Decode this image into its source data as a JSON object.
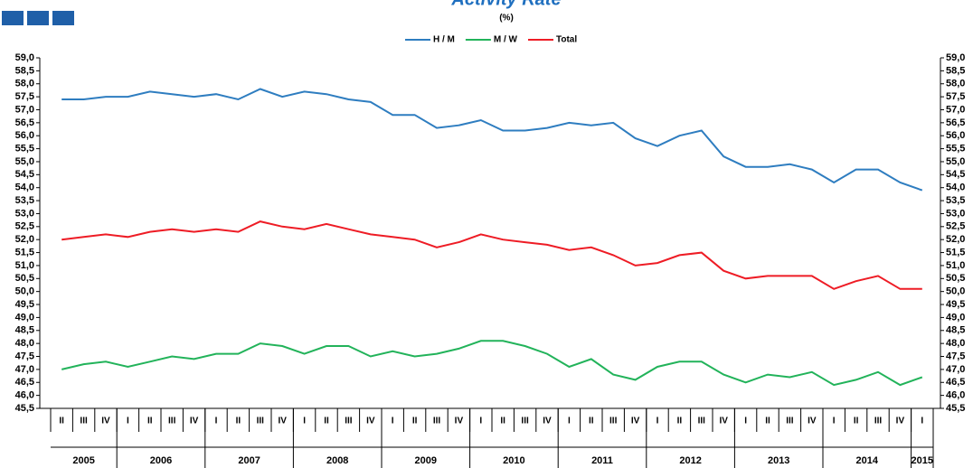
{
  "chart_data": {
    "type": "line",
    "title": "Activity Rate",
    "subtitle": "(%)",
    "categories": [
      "II",
      "III",
      "IV",
      "I",
      "II",
      "III",
      "IV",
      "I",
      "II",
      "III",
      "IV",
      "I",
      "II",
      "III",
      "IV",
      "I",
      "II",
      "III",
      "IV",
      "I",
      "II",
      "III",
      "IV",
      "I",
      "II",
      "III",
      "IV",
      "I",
      "II",
      "III",
      "IV",
      "I",
      "II",
      "III",
      "IV",
      "I",
      "II",
      "III",
      "IV",
      "I"
    ],
    "years": [
      "2005",
      "2006",
      "2007",
      "2008",
      "2009",
      "2010",
      "2011",
      "2012",
      "2013",
      "2014",
      "2015"
    ],
    "series": [
      {
        "name": "H / M",
        "color": "#2e7dc0",
        "values": [
          57.4,
          57.4,
          57.5,
          57.5,
          57.7,
          57.6,
          57.5,
          57.6,
          57.4,
          57.8,
          57.5,
          57.7,
          57.6,
          57.4,
          57.3,
          56.8,
          56.8,
          56.3,
          56.4,
          56.6,
          56.2,
          56.2,
          56.3,
          56.5,
          56.4,
          56.5,
          55.9,
          55.6,
          56.0,
          56.2,
          55.2,
          54.8,
          54.8,
          54.9,
          54.7,
          54.2,
          54.7,
          54.7,
          54.2,
          53.9
        ]
      },
      {
        "name": "M / W",
        "color": "#22b35a",
        "values": [
          47.0,
          47.2,
          47.3,
          47.1,
          47.3,
          47.5,
          47.4,
          47.6,
          47.6,
          48.0,
          47.9,
          47.6,
          47.9,
          47.9,
          47.5,
          47.7,
          47.5,
          47.6,
          47.8,
          48.1,
          48.1,
          47.9,
          47.6,
          47.1,
          47.4,
          46.8,
          46.6,
          47.1,
          47.3,
          47.3,
          46.8,
          46.5,
          46.8,
          46.7,
          46.9,
          46.4,
          46.6,
          46.9,
          46.4,
          46.7
        ]
      },
      {
        "name": "Total",
        "color": "#ee1c25",
        "values": [
          52.0,
          52.1,
          52.2,
          52.1,
          52.3,
          52.4,
          52.3,
          52.4,
          52.3,
          52.7,
          52.5,
          52.4,
          52.6,
          52.4,
          52.2,
          52.1,
          52.0,
          51.7,
          51.9,
          52.2,
          52.0,
          51.9,
          51.8,
          51.6,
          51.7,
          51.4,
          51.0,
          51.1,
          51.4,
          51.5,
          50.8,
          50.5,
          50.6,
          50.6,
          50.6,
          50.1,
          50.4,
          50.6,
          50.1,
          50.1
        ]
      }
    ],
    "ylim": [
      45.5,
      59.0
    ],
    "yticks": [
      {
        "value": 45.5,
        "label": "45,5"
      },
      {
        "value": 46.0,
        "label": "46,0"
      },
      {
        "value": 46.5,
        "label": "46,5"
      },
      {
        "value": 47.0,
        "label": "47,0"
      },
      {
        "value": 47.5,
        "label": "47,5"
      },
      {
        "value": 48.0,
        "label": "48,0"
      },
      {
        "value": 48.5,
        "label": "48,5"
      },
      {
        "value": 49.0,
        "label": "49,0"
      },
      {
        "value": 49.5,
        "label": "49,5"
      },
      {
        "value": 50.0,
        "label": "50,0"
      },
      {
        "value": 50.5,
        "label": "50,5"
      },
      {
        "value": 51.0,
        "label": "51,0"
      },
      {
        "value": 51.5,
        "label": "51,5"
      },
      {
        "value": 52.0,
        "label": "52,0"
      },
      {
        "value": 52.5,
        "label": "52,5"
      },
      {
        "value": 53.0,
        "label": "53,0"
      },
      {
        "value": 53.5,
        "label": "53,5"
      },
      {
        "value": 54.0,
        "label": "54,0"
      },
      {
        "value": 54.5,
        "label": "54,5"
      },
      {
        "value": 55.0,
        "label": "55,0"
      },
      {
        "value": 55.5,
        "label": "55,5"
      },
      {
        "value": 56.0,
        "label": "56,0"
      },
      {
        "value": 56.5,
        "label": "56,5"
      },
      {
        "value": 57.0,
        "label": "57,0"
      },
      {
        "value": 57.5,
        "label": "57,5"
      },
      {
        "value": 58.0,
        "label": "58,0"
      },
      {
        "value": 58.5,
        "label": "58,5"
      },
      {
        "value": 59.0,
        "label": "59,0"
      }
    ],
    "legend": "top"
  }
}
